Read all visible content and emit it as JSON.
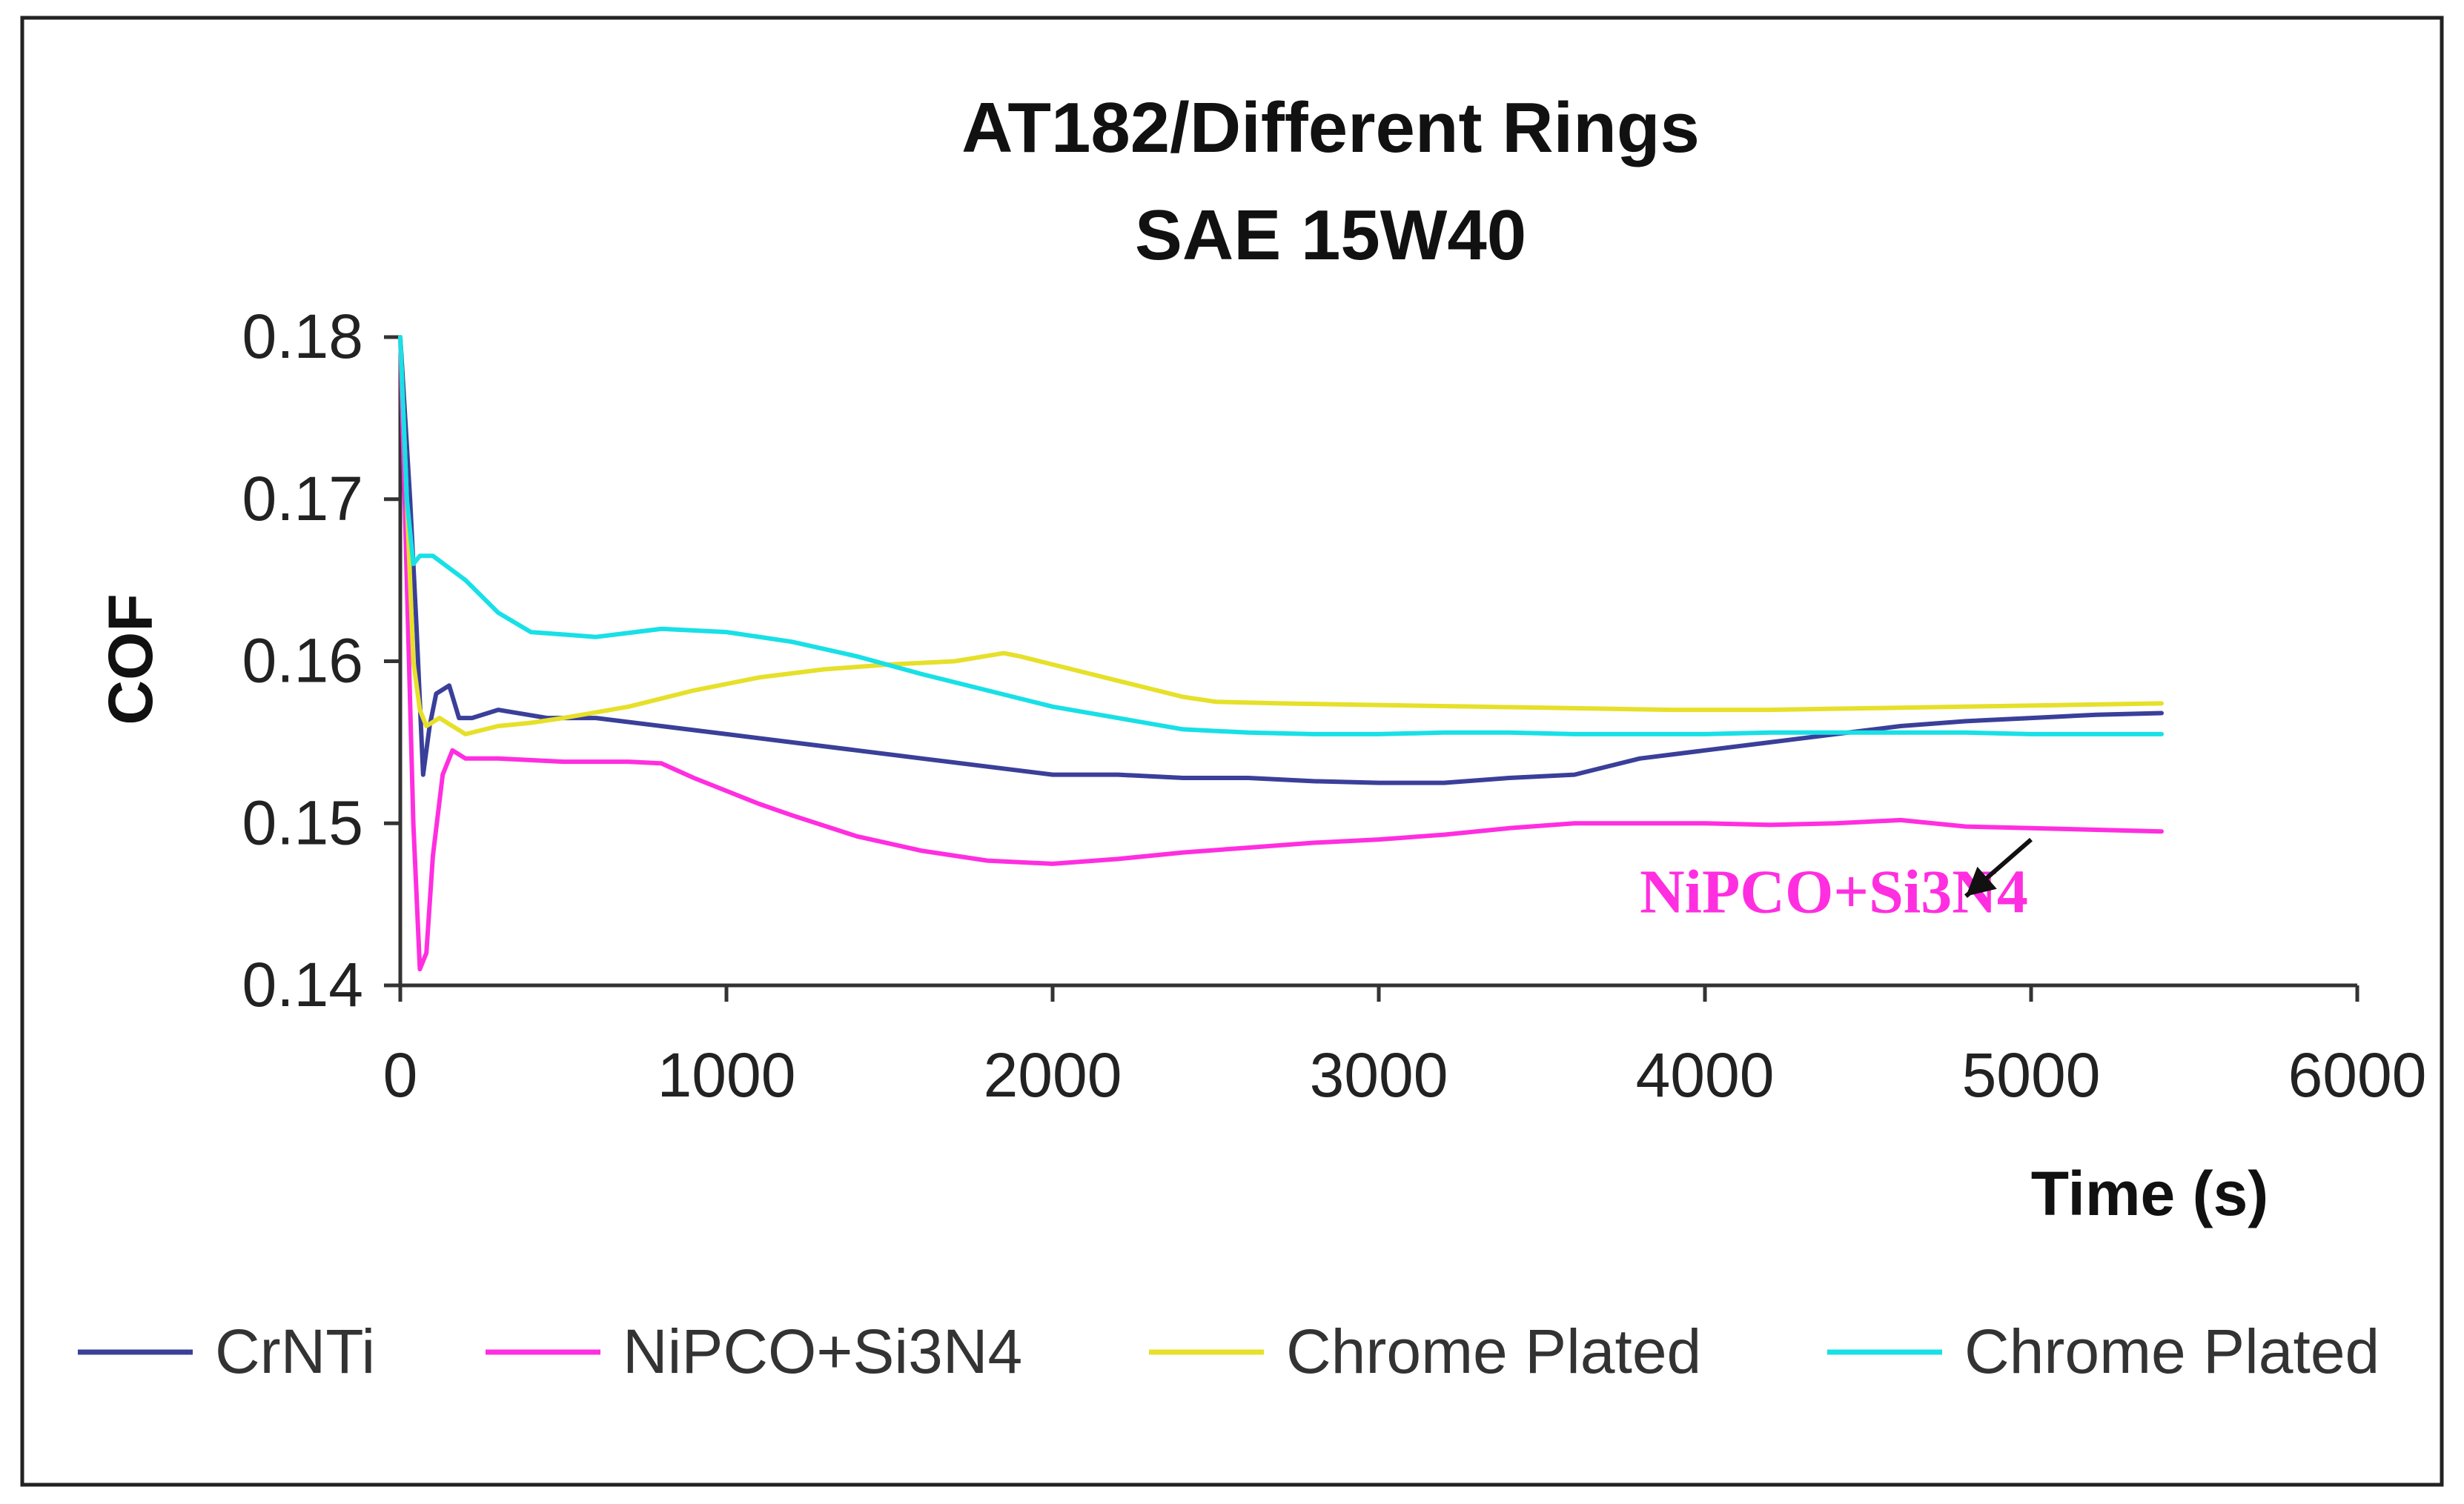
{
  "chart_data": {
    "type": "line",
    "title": "AT182/Different Rings",
    "subtitle": "SAE 15W40",
    "xlabel": "Time (s)",
    "ylabel": "COF",
    "xlim": [
      0,
      6000
    ],
    "ylim": [
      0.14,
      0.18
    ],
    "xticks": [
      0,
      1000,
      2000,
      3000,
      4000,
      5000,
      6000
    ],
    "xtick_labels": [
      "0",
      "1000",
      "2000",
      "3000",
      "4000",
      "5000",
      "6000"
    ],
    "yticks": [
      0.14,
      0.15,
      0.16,
      0.17,
      0.18
    ],
    "ytick_labels": [
      "0.14",
      "0.15",
      "0.16",
      "0.17",
      "0.18"
    ],
    "grid": false,
    "legend_position": "bottom",
    "series": [
      {
        "name": "CrNTi",
        "color": "#3a3f9a",
        "x": [
          0,
          30,
          50,
          70,
          90,
          110,
          150,
          180,
          220,
          300,
          450,
          600,
          800,
          1000,
          1200,
          1400,
          1600,
          1800,
          2000,
          2200,
          2400,
          2600,
          2800,
          3000,
          3200,
          3400,
          3600,
          3800,
          4000,
          4200,
          4400,
          4600,
          4800,
          5000,
          5200,
          5400
        ],
        "y": [
          0.18,
          0.17,
          0.162,
          0.153,
          0.156,
          0.158,
          0.1585,
          0.1565,
          0.1565,
          0.157,
          0.1565,
          0.1565,
          0.156,
          0.1555,
          0.155,
          0.1545,
          0.154,
          0.1535,
          0.153,
          0.153,
          0.1528,
          0.1528,
          0.1526,
          0.1525,
          0.1525,
          0.1528,
          0.153,
          0.154,
          0.1545,
          0.155,
          0.1555,
          0.156,
          0.1563,
          0.1565,
          0.1567,
          0.1568
        ]
      },
      {
        "name": "NiPCO+Si3N4",
        "color": "#ff2ee0",
        "x": [
          0,
          20,
          40,
          60,
          80,
          100,
          130,
          160,
          200,
          300,
          500,
          700,
          800,
          900,
          1000,
          1100,
          1200,
          1400,
          1600,
          1800,
          2000,
          2200,
          2400,
          2600,
          2800,
          3000,
          3200,
          3400,
          3600,
          3800,
          4000,
          4200,
          4400,
          4600,
          4800,
          5000,
          5200,
          5400
        ],
        "y": [
          0.18,
          0.165,
          0.15,
          0.141,
          0.142,
          0.148,
          0.153,
          0.1545,
          0.154,
          0.154,
          0.1538,
          0.1538,
          0.1537,
          0.1528,
          0.152,
          0.1512,
          0.1505,
          0.1492,
          0.1483,
          0.1477,
          0.1475,
          0.1478,
          0.1482,
          0.1485,
          0.1488,
          0.149,
          0.1493,
          0.1497,
          0.15,
          0.15,
          0.15,
          0.1499,
          0.15,
          0.1502,
          0.1498,
          0.1497,
          0.1496,
          0.1495
        ]
      },
      {
        "name": "Chrome Plated",
        "color": "#e6e02a",
        "x": [
          0,
          20,
          40,
          60,
          80,
          120,
          200,
          300,
          400,
          500,
          700,
          900,
          1100,
          1300,
          1500,
          1700,
          1850,
          1900,
          2000,
          2200,
          2400,
          2500,
          2700,
          3000,
          3300,
          3600,
          3900,
          4200,
          4500,
          4800,
          5100,
          5400
        ],
        "y": [
          0.18,
          0.17,
          0.16,
          0.157,
          0.156,
          0.1565,
          0.1555,
          0.156,
          0.1562,
          0.1565,
          0.1572,
          0.1582,
          0.159,
          0.1595,
          0.1598,
          0.16,
          0.1605,
          0.1603,
          0.1598,
          0.1588,
          0.1578,
          0.1575,
          0.1574,
          0.1573,
          0.1572,
          0.1571,
          0.157,
          0.157,
          0.1571,
          0.1572,
          0.1573,
          0.1574
        ]
      },
      {
        "name": "Chrome Plated",
        "color": "#18e0e6",
        "x": [
          0,
          20,
          40,
          60,
          100,
          200,
          300,
          400,
          600,
          800,
          1000,
          1200,
          1400,
          1600,
          1800,
          2000,
          2200,
          2400,
          2600,
          2800,
          3000,
          3200,
          3400,
          3600,
          3800,
          4000,
          4200,
          4400,
          4600,
          4800,
          5000,
          5200,
          5400
        ],
        "y": [
          0.18,
          0.17,
          0.166,
          0.1665,
          0.1665,
          0.165,
          0.163,
          0.1618,
          0.1615,
          0.162,
          0.1618,
          0.1612,
          0.1603,
          0.1592,
          0.1582,
          0.1572,
          0.1565,
          0.1558,
          0.1556,
          0.1555,
          0.1555,
          0.1556,
          0.1556,
          0.1555,
          0.1555,
          0.1555,
          0.1556,
          0.1556,
          0.1556,
          0.1556,
          0.1555,
          0.1555,
          0.1555
        ]
      }
    ],
    "annotations": [
      {
        "text": "NiPCO+Si3N4",
        "color": "#ff2ee0",
        "at_x": 3800,
        "at_y": 0.1445,
        "arrow_from": [
          5000,
          0.149
        ],
        "arrow_to": [
          4800,
          0.1455
        ]
      }
    ]
  }
}
